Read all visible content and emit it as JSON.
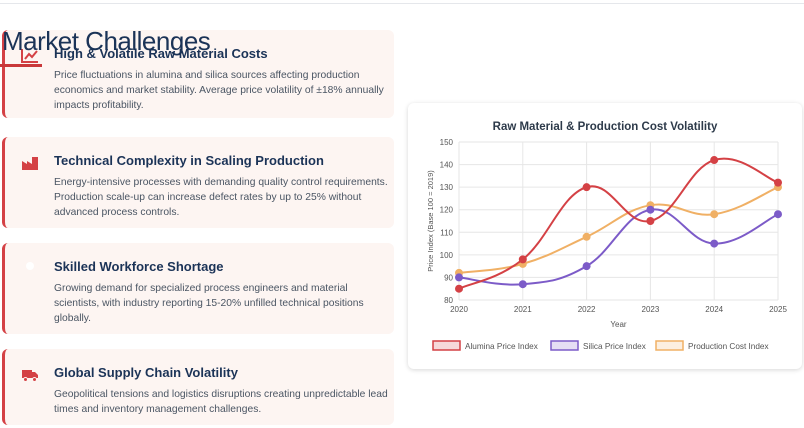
{
  "page": {
    "title": "Market Challenges"
  },
  "cards": [
    {
      "title": "High & Volatile Raw Material Costs",
      "description": "Price fluctuations in alumina and silica sources affecting production economics and market stability. Average price volatility of ±18% annually impacts profitability.",
      "icon": "chart-line-icon"
    },
    {
      "title": "Technical Complexity in Scaling Production",
      "description": "Energy-intensive processes with demanding quality control requirements. Production scale-up can increase defect rates by up to 25% without advanced process controls.",
      "icon": "factory-icon"
    },
    {
      "title": "Skilled Workforce Shortage",
      "description": "Growing demand for specialized process engineers and material scientists, with industry reporting 15-20% unfilled technical positions globally.",
      "icon": "user-icon"
    },
    {
      "title": "Global Supply Chain Volatility",
      "description": "Geopolitical tensions and logistics disruptions creating unpredictable lead times and inventory management challenges.",
      "icon": "truck-icon"
    }
  ],
  "colors": {
    "accent": "#d44145",
    "card_bg": "#fdf5f2",
    "title": "#1b3357"
  },
  "chart_data": {
    "type": "line",
    "title": "Raw Material & Production Cost Volatility",
    "xlabel": "Year",
    "ylabel": "Price Index (Base 100 = 2019)",
    "x": [
      "2020",
      "2021",
      "2022",
      "2023",
      "2024",
      "2025"
    ],
    "ylim": [
      80,
      150
    ],
    "yticks": [
      80,
      90,
      100,
      110,
      120,
      130,
      140,
      150
    ],
    "grid": true,
    "legend": "bottom",
    "series": [
      {
        "name": "Alumina Price Index",
        "values": [
          85,
          98,
          130,
          115,
          142,
          132
        ],
        "color": "#d44145"
      },
      {
        "name": "Silica Price Index",
        "values": [
          90,
          87,
          95,
          120,
          105,
          118
        ],
        "color": "#7c5bc8"
      },
      {
        "name": "Production Cost Index",
        "values": [
          92,
          96,
          108,
          122,
          118,
          130
        ],
        "color": "#f0b065"
      }
    ]
  }
}
